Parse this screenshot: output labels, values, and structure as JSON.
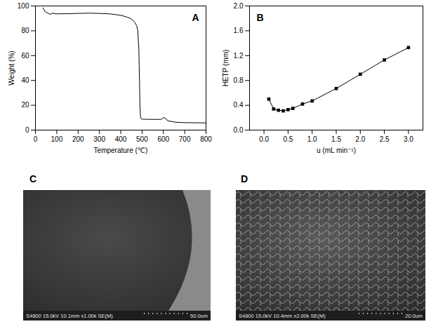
{
  "chart_data": [
    {
      "type": "line",
      "title": "A",
      "x_label": "Temperature (℃)",
      "y_label": "Weight (%)",
      "x": [
        35,
        45,
        60,
        70,
        80,
        100,
        150,
        200,
        250,
        300,
        350,
        400,
        430,
        450,
        465,
        475,
        480,
        485,
        488,
        490,
        493,
        496,
        500,
        520,
        560,
        590,
        597,
        603,
        610,
        620,
        660,
        700,
        800
      ],
      "values": [
        98.5,
        95.5,
        94,
        93.2,
        94.2,
        93.6,
        93.8,
        94,
        94.2,
        94,
        93.6,
        92.5,
        91,
        89.5,
        87,
        84,
        80,
        65,
        40,
        20,
        10,
        9,
        8.8,
        8.7,
        8.6,
        8.6,
        9.8,
        10,
        9.5,
        7.5,
        6.3,
        6,
        5.8
      ],
      "color": "#000000",
      "xlim": [
        0,
        800
      ],
      "xticks": [
        0,
        100,
        200,
        300,
        400,
        500,
        600,
        700,
        800
      ],
      "ylim": [
        0,
        100
      ],
      "yticks": [
        0,
        20,
        40,
        60,
        80,
        100
      ],
      "grid": false
    },
    {
      "type": "line",
      "title": "B",
      "x_label": "u (mL min⁻¹)",
      "y_label": "HETP (mm)",
      "x": [
        0.1,
        0.2,
        0.3,
        0.4,
        0.5,
        0.6,
        0.8,
        1.0,
        1.5,
        2.0,
        2.5,
        3.0
      ],
      "values": [
        0.5,
        0.34,
        0.32,
        0.31,
        0.33,
        0.35,
        0.42,
        0.47,
        0.67,
        0.9,
        1.13,
        1.33
      ],
      "color": "#000000",
      "marker": "square",
      "xlim": [
        -0.3,
        3.3
      ],
      "xticks": [
        {
          "value": 0,
          "label": "0.0"
        },
        {
          "value": 0.5,
          "label": "0.5"
        },
        {
          "value": 1,
          "label": "1.0"
        },
        {
          "value": 1.5,
          "label": "1.5"
        },
        {
          "value": 2,
          "label": "2.0"
        },
        {
          "value": 2.5,
          "label": "2.5"
        },
        {
          "value": 3,
          "label": "3.0"
        }
      ],
      "ylim": [
        0,
        2
      ],
      "yticks": [
        {
          "value": 0,
          "label": "0.0"
        },
        {
          "value": 0.4,
          "label": "0.4"
        },
        {
          "value": 0.8,
          "label": "0.8"
        },
        {
          "value": 1.2,
          "label": "1.2"
        },
        {
          "value": 1.6,
          "label": "1.6"
        },
        {
          "value": 2,
          "label": "2.0"
        }
      ],
      "grid": false
    }
  ],
  "images": [
    {
      "label": "C",
      "info": "S4800 15.0kV 10.1mm x1.00k SE(M)",
      "scale_bar": "50.0um"
    },
    {
      "label": "D",
      "info": "S4800 15.0kV 10.4mm x2.00k SE(M)",
      "scale_bar": "20.0um"
    }
  ]
}
